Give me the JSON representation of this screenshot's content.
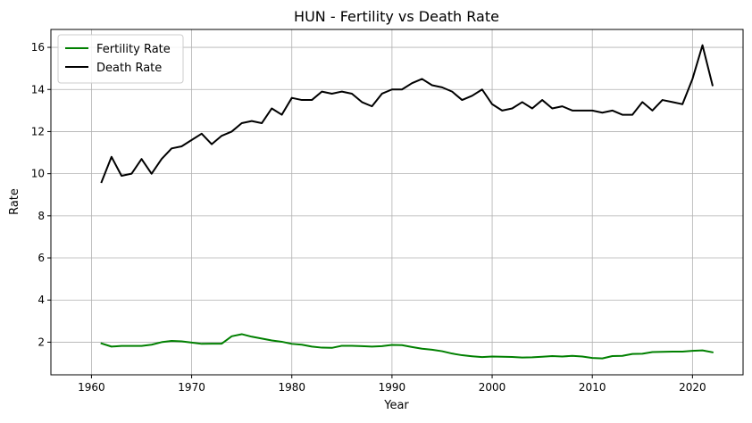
{
  "chart_data": {
    "type": "line",
    "title": "HUN - Fertility vs Death Rate",
    "xlabel": "Year",
    "ylabel": "Rate",
    "xlim": [
      1955.95,
      2025.05
    ],
    "ylim": [
      0.45,
      16.85
    ],
    "xticks": [
      1960,
      1970,
      1980,
      1990,
      2000,
      2010,
      2020
    ],
    "yticks": [
      2,
      4,
      6,
      8,
      10,
      12,
      14,
      16
    ],
    "grid": true,
    "legend_position": "top-left",
    "x": [
      1961,
      1962,
      1963,
      1964,
      1965,
      1966,
      1967,
      1968,
      1969,
      1970,
      1971,
      1972,
      1973,
      1974,
      1975,
      1976,
      1977,
      1978,
      1979,
      1980,
      1981,
      1982,
      1983,
      1984,
      1985,
      1986,
      1987,
      1988,
      1989,
      1990,
      1991,
      1992,
      1993,
      1994,
      1995,
      1996,
      1997,
      1998,
      1999,
      2000,
      2001,
      2002,
      2003,
      2004,
      2005,
      2006,
      2007,
      2008,
      2009,
      2010,
      2011,
      2012,
      2013,
      2014,
      2015,
      2016,
      2017,
      2018,
      2019,
      2020,
      2021,
      2022
    ],
    "series": [
      {
        "name": "Fertility Rate",
        "color": "#008000",
        "values": [
          1.94,
          1.79,
          1.82,
          1.82,
          1.82,
          1.88,
          2.0,
          2.06,
          2.04,
          1.98,
          1.92,
          1.93,
          1.93,
          2.28,
          2.38,
          2.26,
          2.17,
          2.08,
          2.02,
          1.92,
          1.88,
          1.79,
          1.74,
          1.73,
          1.83,
          1.83,
          1.81,
          1.79,
          1.81,
          1.87,
          1.86,
          1.77,
          1.69,
          1.64,
          1.57,
          1.46,
          1.38,
          1.33,
          1.29,
          1.32,
          1.31,
          1.3,
          1.27,
          1.28,
          1.31,
          1.34,
          1.32,
          1.35,
          1.32,
          1.25,
          1.23,
          1.34,
          1.35,
          1.44,
          1.45,
          1.53,
          1.54,
          1.55,
          1.55,
          1.59,
          1.61,
          1.52
        ]
      },
      {
        "name": "Death Rate",
        "color": "#000000",
        "values": [
          9.6,
          10.8,
          9.9,
          10.0,
          10.7,
          10.0,
          10.7,
          11.2,
          11.3,
          11.6,
          11.9,
          11.4,
          11.8,
          12.0,
          12.4,
          12.5,
          12.4,
          13.1,
          12.8,
          13.6,
          13.5,
          13.5,
          13.9,
          13.8,
          13.9,
          13.8,
          13.4,
          13.2,
          13.8,
          14.0,
          14.0,
          14.3,
          14.5,
          14.2,
          14.1,
          13.9,
          13.5,
          13.7,
          14.0,
          13.3,
          13.0,
          13.1,
          13.4,
          13.1,
          13.5,
          13.1,
          13.2,
          13.0,
          13.0,
          13.0,
          12.9,
          13.0,
          12.8,
          12.8,
          13.4,
          13.0,
          13.5,
          13.4,
          13.3,
          14.5,
          16.1,
          14.2
        ]
      }
    ]
  }
}
